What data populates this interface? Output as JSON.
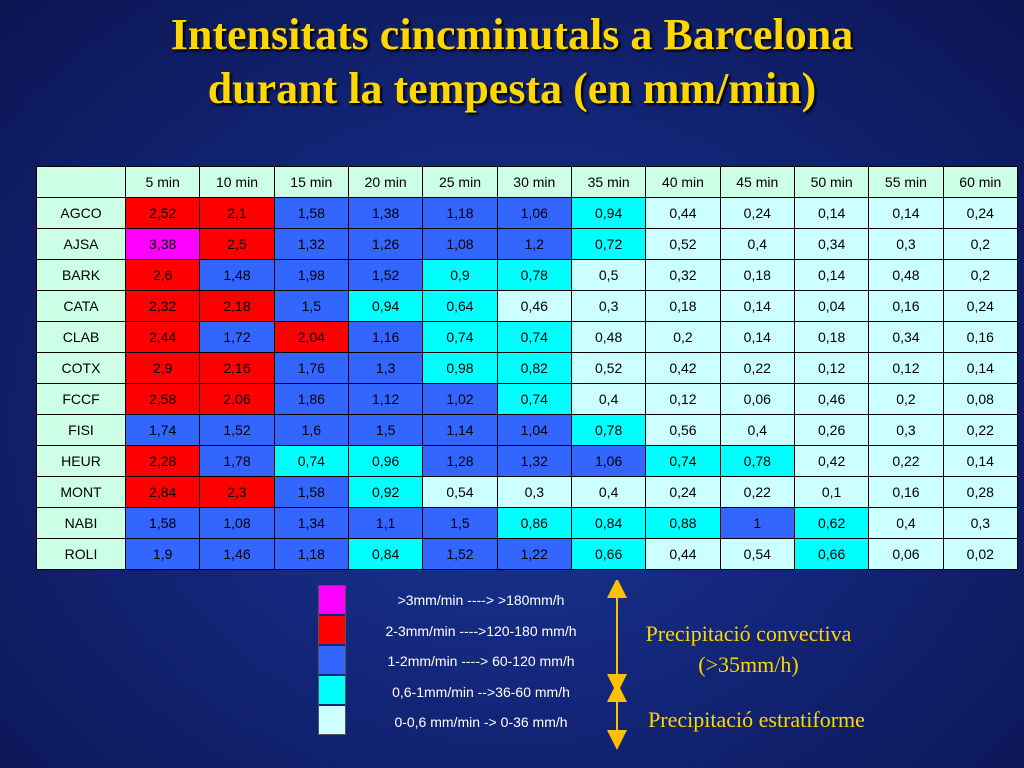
{
  "title": {
    "line1": "Intensitats cincminutals a Barcelona",
    "line2": "durant la tempesta (en mm/min)"
  },
  "chart_data": {
    "type": "table",
    "columns": [
      "5 min",
      "10 min",
      "15 min",
      "20 min",
      "25 min",
      "30 min",
      "35 min",
      "40 min",
      "45 min",
      "50 min",
      "55 min",
      "60 min"
    ],
    "rows": [
      {
        "station": "AGCO",
        "values": [
          "2,52",
          "2,1",
          "1,58",
          "1,38",
          "1,18",
          "1,06",
          "0,94",
          "0,44",
          "0,24",
          "0,14",
          "0,14",
          "0,24"
        ]
      },
      {
        "station": "AJSA",
        "values": [
          "3,38",
          "2,5",
          "1,32",
          "1,26",
          "1,08",
          "1,2",
          "0,72",
          "0,52",
          "0,4",
          "0,34",
          "0,3",
          "0,2"
        ]
      },
      {
        "station": "BARK",
        "values": [
          "2,6",
          "1,48",
          "1,98",
          "1,52",
          "0,9",
          "0,78",
          "0,5",
          "0,32",
          "0,18",
          "0,14",
          "0,48",
          "0,2"
        ]
      },
      {
        "station": "CATA",
        "values": [
          "2,32",
          "2,18",
          "1,5",
          "0,94",
          "0,64",
          "0,46",
          "0,3",
          "0,18",
          "0,14",
          "0,04",
          "0,16",
          "0,24"
        ]
      },
      {
        "station": "CLAB",
        "values": [
          "2,44",
          "1,72",
          "2,04",
          "1,16",
          "0,74",
          "0,74",
          "0,48",
          "0,2",
          "0,14",
          "0,18",
          "0,34",
          "0,16"
        ]
      },
      {
        "station": "COTX",
        "values": [
          "2,9",
          "2,16",
          "1,76",
          "1,3",
          "0,98",
          "0,82",
          "0,52",
          "0,42",
          "0,22",
          "0,12",
          "0,12",
          "0,14"
        ]
      },
      {
        "station": "FCCF",
        "values": [
          "2,58",
          "2,06",
          "1,86",
          "1,12",
          "1,02",
          "0,74",
          "0,4",
          "0,12",
          "0,06",
          "0,46",
          "0,2",
          "0,08"
        ]
      },
      {
        "station": "FISI",
        "values": [
          "1,74",
          "1,52",
          "1,6",
          "1,5",
          "1,14",
          "1,04",
          "0,78",
          "0,56",
          "0,4",
          "0,26",
          "0,3",
          "0,22"
        ]
      },
      {
        "station": "HEUR",
        "values": [
          "2,28",
          "1,78",
          "0,74",
          "0,96",
          "1,28",
          "1,32",
          "1,06",
          "0,74",
          "0,78",
          "0,42",
          "0,22",
          "0,14"
        ]
      },
      {
        "station": "MONT",
        "values": [
          "2,84",
          "2,3",
          "1,58",
          "0,92",
          "0,54",
          "0,3",
          "0,4",
          "0,24",
          "0,22",
          "0,1",
          "0,16",
          "0,28"
        ]
      },
      {
        "station": "NABI",
        "values": [
          "1,58",
          "1,08",
          "1,34",
          "1,1",
          "1,5",
          "0,86",
          "0,84",
          "0,88",
          "1",
          "0,62",
          "0,4",
          "0,3"
        ]
      },
      {
        "station": "ROLI",
        "values": [
          "1,9",
          "1,46",
          "1,18",
          "0,84",
          "1,52",
          "1,22",
          "0,66",
          "0,44",
          "0,54",
          "0,66",
          "0,06",
          "0,02"
        ]
      }
    ],
    "cell_colors": [
      [
        "red",
        "red",
        "blue",
        "blue",
        "blue",
        "blue",
        "cyan",
        "pale",
        "pale",
        "pale",
        "pale",
        "pale"
      ],
      [
        "magenta",
        "red",
        "blue",
        "blue",
        "blue",
        "blue",
        "cyan",
        "pale",
        "pale",
        "pale",
        "pale",
        "pale"
      ],
      [
        "red",
        "blue",
        "blue",
        "blue",
        "cyan",
        "cyan",
        "pale",
        "pale",
        "pale",
        "pale",
        "pale",
        "pale"
      ],
      [
        "red",
        "red",
        "blue",
        "cyan",
        "cyan",
        "pale",
        "pale",
        "pale",
        "pale",
        "pale",
        "pale",
        "pale"
      ],
      [
        "red",
        "blue",
        "red",
        "blue",
        "cyan",
        "cyan",
        "pale",
        "pale",
        "pale",
        "pale",
        "pale",
        "pale"
      ],
      [
        "red",
        "red",
        "blue",
        "blue",
        "cyan",
        "cyan",
        "pale",
        "pale",
        "pale",
        "pale",
        "pale",
        "pale"
      ],
      [
        "red",
        "red",
        "blue",
        "blue",
        "blue",
        "cyan",
        "pale",
        "pale",
        "pale",
        "pale",
        "pale",
        "pale"
      ],
      [
        "blue",
        "blue",
        "blue",
        "blue",
        "blue",
        "blue",
        "cyan",
        "pale",
        "pale",
        "pale",
        "pale",
        "pale"
      ],
      [
        "red",
        "blue",
        "cyan",
        "cyan",
        "blue",
        "blue",
        "blue",
        "cyan",
        "cyan",
        "pale",
        "pale",
        "pale"
      ],
      [
        "red",
        "red",
        "blue",
        "cyan",
        "pale",
        "pale",
        "pale",
        "pale",
        "pale",
        "pale",
        "pale",
        "pale"
      ],
      [
        "blue",
        "blue",
        "blue",
        "blue",
        "blue",
        "cyan",
        "cyan",
        "cyan",
        "blue",
        "cyan",
        "pale",
        "pale"
      ],
      [
        "blue",
        "blue",
        "blue",
        "cyan",
        "blue",
        "blue",
        "cyan",
        "pale",
        "pale",
        "cyan",
        "pale",
        "pale"
      ]
    ],
    "palette": {
      "magenta": "#ff00ff",
      "red": "#ff0000",
      "blue": "#3366ff",
      "cyan": "#00ffff",
      "pale": "#ccffff",
      "header": "#ccffe6"
    }
  },
  "legend": [
    {
      "color": "magenta",
      "label": ">3mm/min ----> >180mm/h"
    },
    {
      "color": "red",
      "label": "2-3mm/min ---->120-180 mm/h"
    },
    {
      "color": "blue",
      "label": "1-2mm/min ----> 60-120 mm/h"
    },
    {
      "color": "cyan",
      "label": "0,6-1mm/min -->36-60 mm/h"
    },
    {
      "color": "pale",
      "label": "0-0,6 mm/min -> 0-36 mm/h"
    }
  ],
  "notes": {
    "convective_line1": "Precipitació convectiva",
    "convective_line2": "(>35mm/h)",
    "stratiform": "Precipitació estratiforme"
  }
}
